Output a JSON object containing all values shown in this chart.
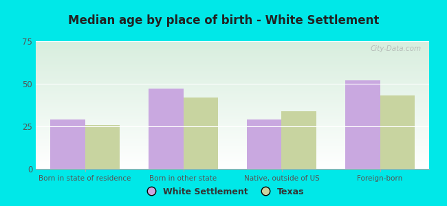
{
  "title": "Median age by place of birth - White Settlement",
  "categories": [
    "Born in state of residence",
    "Born in other state",
    "Native, outside of US",
    "Foreign-born"
  ],
  "white_settlement": [
    29,
    47,
    29,
    52
  ],
  "texas": [
    26,
    42,
    34,
    43
  ],
  "ws_color": "#c9a8e0",
  "tx_color": "#c8d4a0",
  "ylim": [
    0,
    75
  ],
  "yticks": [
    0,
    25,
    50,
    75
  ],
  "bar_width": 0.35,
  "legend_ws": "White Settlement",
  "legend_tx": "Texas",
  "bg_outer": "#00e8e8",
  "bg_plot_top": "#d8eede",
  "bg_plot_bottom": "#f0faf2",
  "watermark": "City-Data.com",
  "title_color": "#222222",
  "tick_color": "#555555",
  "xlabel_color": "#555555"
}
